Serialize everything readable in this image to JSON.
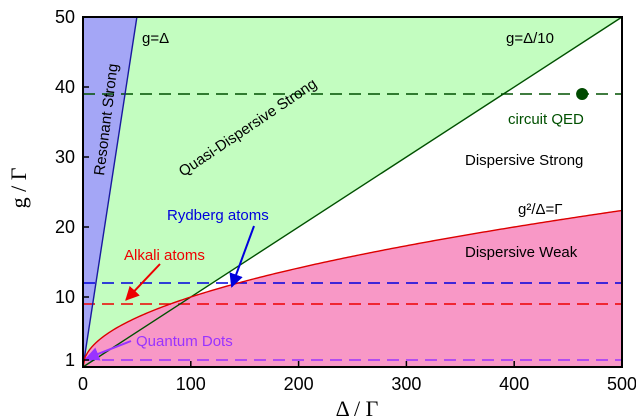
{
  "chart_data": {
    "type": "area",
    "title": "",
    "xlabel": "Δ / Γ",
    "ylabel": "g / Γ",
    "xlim": [
      0,
      500
    ],
    "ylim": [
      0,
      50
    ],
    "grid": false,
    "x_ticks": [
      "0",
      "100",
      "200",
      "300",
      "400",
      "500"
    ],
    "y_ticks": [
      "1",
      "10",
      "20",
      "30",
      "40",
      "50"
    ],
    "boundary_lines": [
      {
        "label": "g=Δ",
        "slope": 1.0,
        "color": "#1a1aa0"
      },
      {
        "label": "g=Δ/10",
        "slope": 0.1,
        "color": "#005000"
      },
      {
        "label": "g²/Δ=Γ",
        "formula": "g = sqrt(Δ)",
        "color": "#dd0000"
      }
    ],
    "regions": [
      {
        "label": "Resonant Strong",
        "fill": "#a4a6f6"
      },
      {
        "label": "Quasi-Dispersive Strong",
        "fill": "#c3fdc0"
      },
      {
        "label": "Dispersive Strong",
        "fill": "#ffffff"
      },
      {
        "label": "Dispersive Weak",
        "fill": "#f898c6"
      }
    ],
    "horizontal_lines": [
      {
        "label": "circuit QED",
        "y": 39,
        "color": "#005000"
      },
      {
        "label": "Rydberg atoms",
        "y": 12,
        "color": "#0000dd"
      },
      {
        "label": "Alkali atoms",
        "y": 9,
        "color": "#ee0000"
      },
      {
        "label": "Quantum Dots",
        "y": 1,
        "color": "#9933ff"
      }
    ],
    "points": [
      {
        "label": "circuit QED",
        "x": 463,
        "y": 39,
        "color": "#004a00"
      }
    ],
    "annotations": {
      "g_eq_delta": "g=Δ",
      "g_eq_delta10": "g=Δ/10",
      "g2_over_delta": "g²/Δ=Γ",
      "resonant_strong": "Resonant Strong",
      "quasi_dispersive_strong": "Quasi-Dispersive Strong",
      "dispersive_strong": "Dispersive Strong",
      "dispersive_weak": "Dispersive Weak",
      "circuit_qed": "circuit QED",
      "rydberg": "Rydberg atoms",
      "alkali": "Alkali atoms",
      "quantum_dots": "Quantum Dots"
    }
  }
}
